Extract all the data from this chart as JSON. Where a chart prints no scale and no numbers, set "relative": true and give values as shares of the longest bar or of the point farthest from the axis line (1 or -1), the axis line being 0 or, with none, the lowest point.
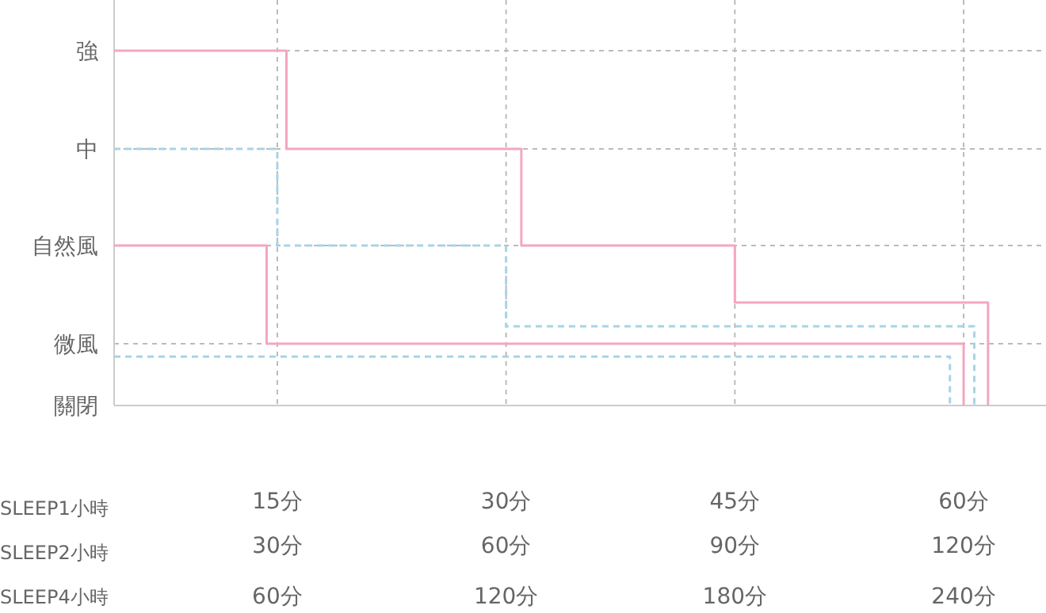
{
  "chart_data": {
    "type": "step",
    "relative": true,
    "xlim": [
      4.3,
      65.4
    ],
    "xticks": [
      {
        "value": 15,
        "label": "15分"
      },
      {
        "value": 30,
        "label": "30分"
      },
      {
        "value": 45,
        "label": "45分"
      },
      {
        "value": 60,
        "label": "60分"
      }
    ],
    "x2lim": [
      8.6,
      130.8
    ],
    "x2ticks": [
      {
        "value": 30,
        "label": "30分"
      },
      {
        "value": 60,
        "label": "60分"
      },
      {
        "value": 90,
        "label": "90分"
      },
      {
        "value": 120,
        "label": "120分"
      }
    ],
    "xlabel": "SLEEP1小時",
    "x2label": "SLEEP2小時",
    "annotations": [
      "強",
      "中",
      "自然風",
      "微風",
      "關閉",
      "SLEEP4小時",
      "60分",
      "120分",
      "180分",
      "240分"
    ],
    "grid": true,
    "series": [
      {
        "color": "#f4a6c0",
        "line_style": "solid",
        "x": [
          4.3,
          15.6,
          31.0,
          45.0,
          61.6
        ],
        "values": [
          1,
          0.723,
          0.451,
          0.29,
          0
        ]
      },
      {
        "color": "#f4a6c0",
        "line_style": "solid",
        "x": [
          4.3,
          14.3,
          60.0
        ],
        "values": [
          0.451,
          0.174,
          0
        ]
      },
      {
        "color": "#a8d4e6",
        "line_style": "dashed",
        "x": [
          4.3,
          15.0,
          30.0,
          60.7
        ],
        "values": [
          0.723,
          0.451,
          0.223,
          0
        ]
      },
      {
        "color": "#a8d4e6",
        "line_style": "dashed",
        "x": [
          4.3,
          59.1
        ],
        "values": [
          0.138,
          0
        ]
      }
    ]
  }
}
